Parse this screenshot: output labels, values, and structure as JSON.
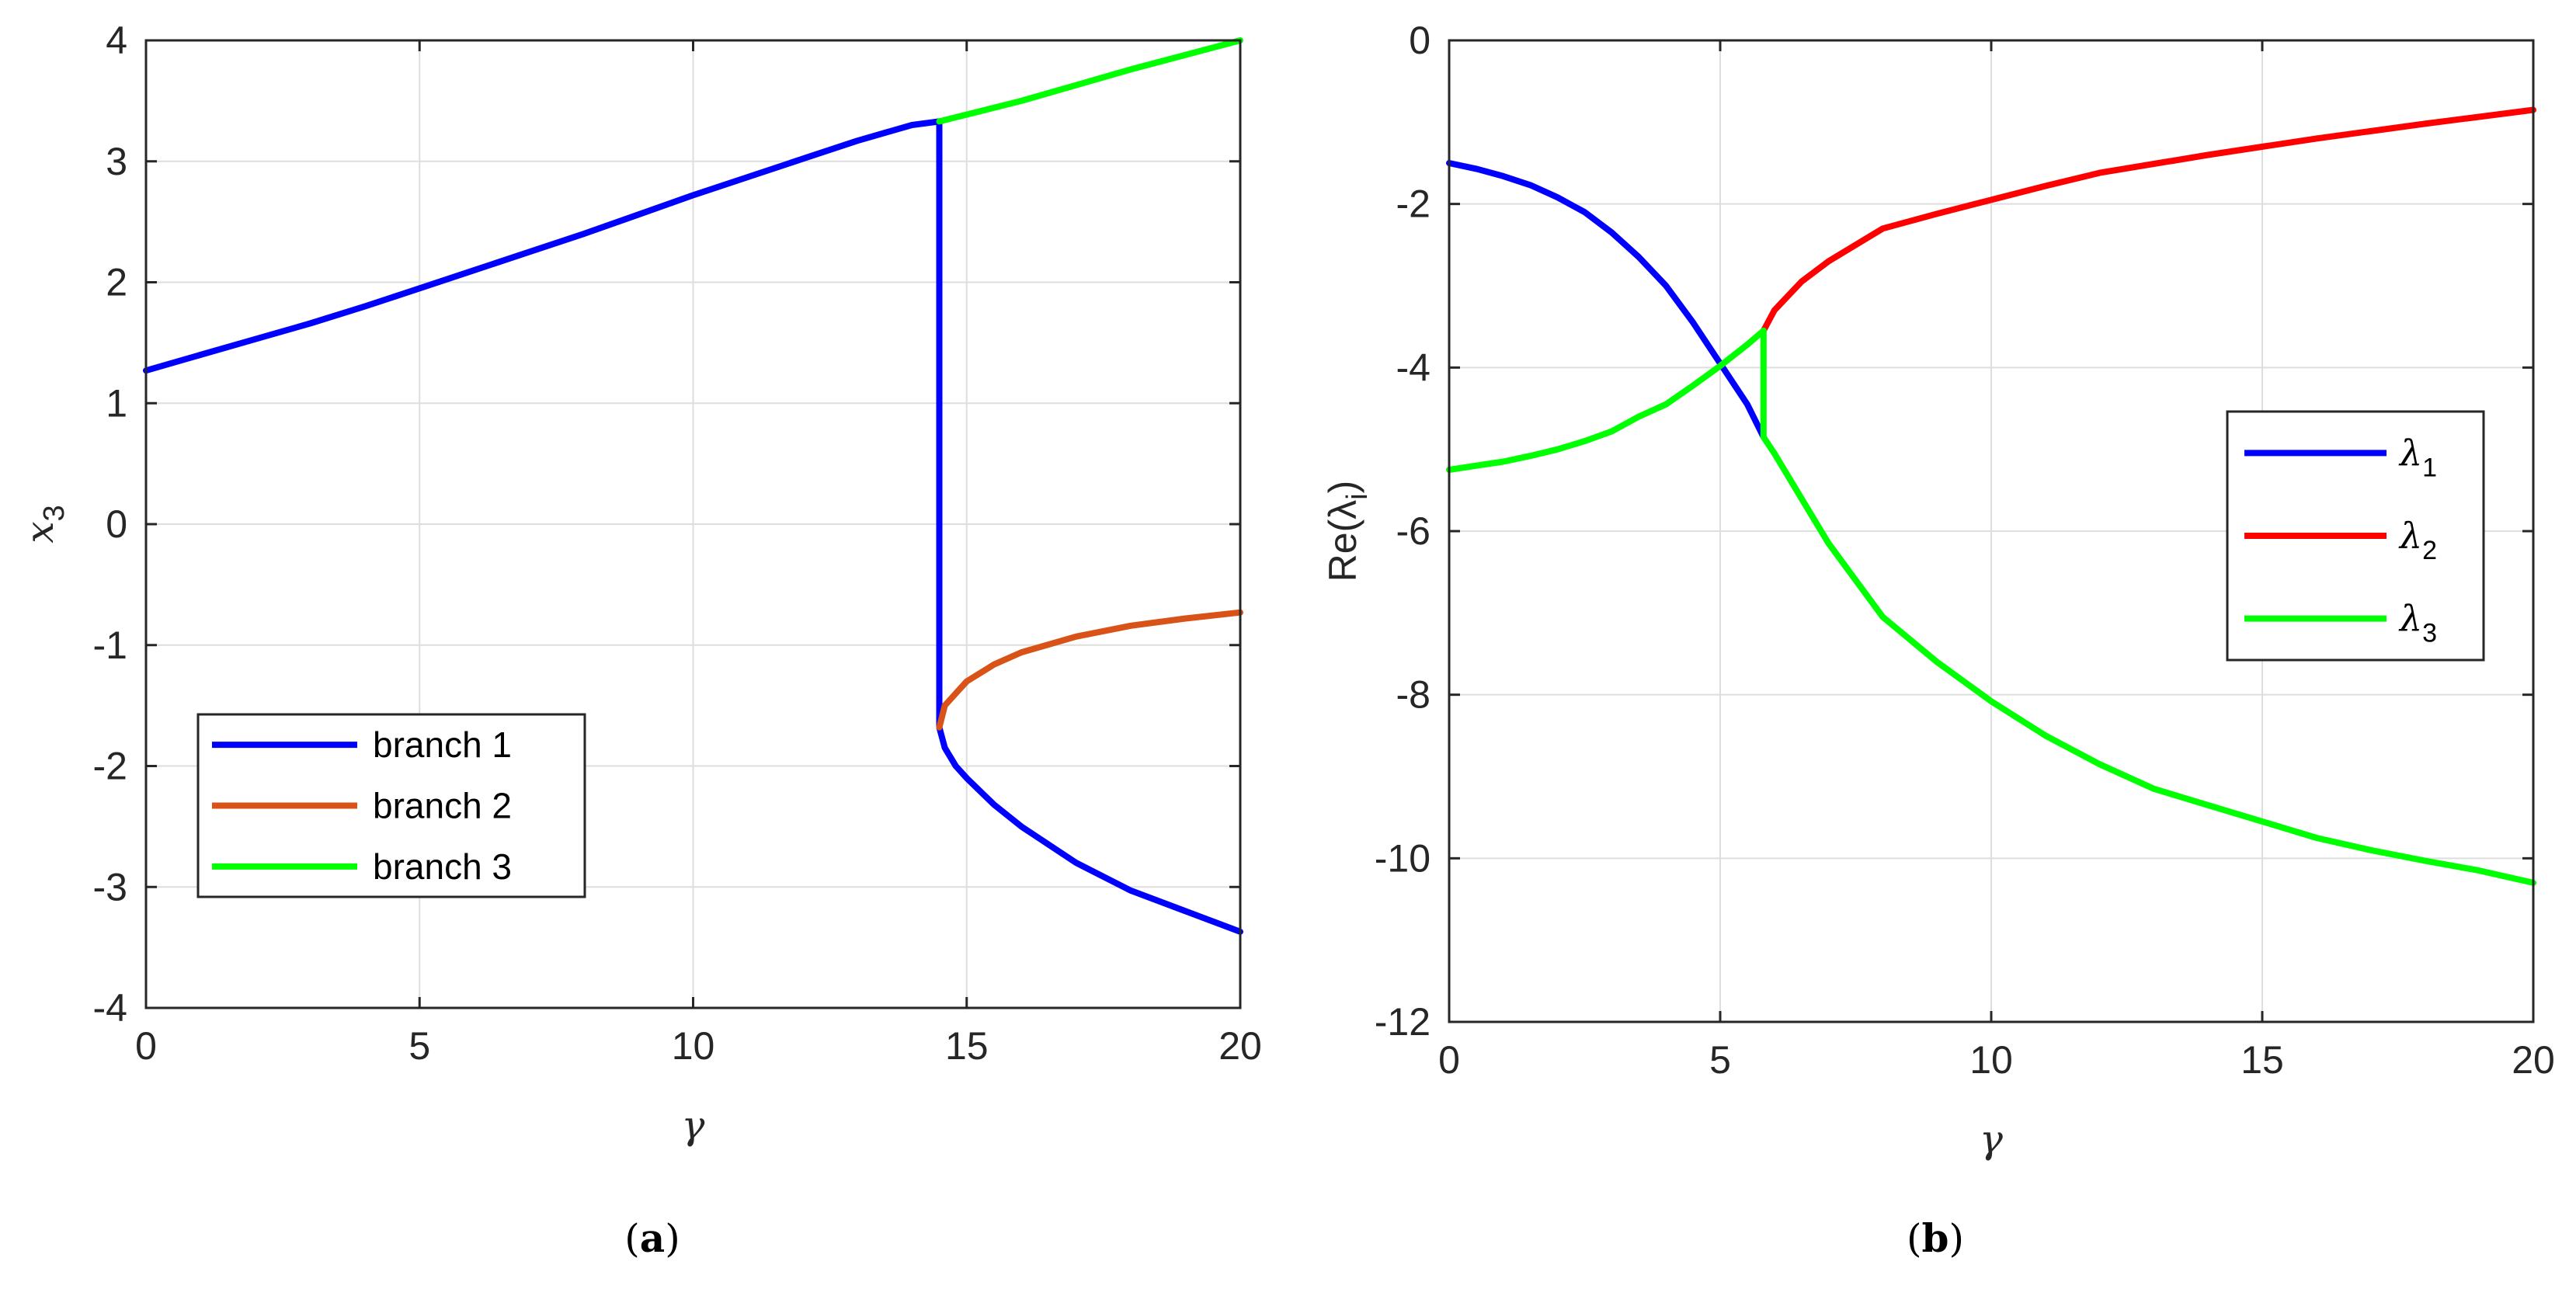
{
  "chart_data": [
    {
      "type": "line",
      "panel_label": "(a)",
      "panel_letter": "a",
      "xlabel": "γ",
      "ylabel": "x",
      "ylabel_sub": "3",
      "xlim": [
        0,
        20
      ],
      "ylim": [
        -4,
        4
      ],
      "xticks": [
        0,
        5,
        10,
        15,
        20
      ],
      "yticks": [
        -4,
        -3,
        -2,
        -1,
        0,
        1,
        2,
        3,
        4
      ],
      "grid": true,
      "legend_position": "lower-left",
      "series": [
        {
          "name": "branch 1",
          "color": "#0000ff",
          "segments": [
            {
              "x": [
                0,
                1,
                2,
                3,
                4,
                5,
                6,
                7,
                8,
                9,
                10,
                11,
                12,
                13,
                14,
                14.5
              ],
              "y": [
                1.27,
                1.4,
                1.53,
                1.66,
                1.8,
                1.95,
                2.1,
                2.25,
                2.4,
                2.56,
                2.72,
                2.87,
                3.02,
                3.17,
                3.3,
                3.33
              ]
            },
            {
              "x": [
                14.5,
                14.5
              ],
              "y": [
                3.33,
                -1.68
              ]
            },
            {
              "x": [
                14.5,
                14.6,
                14.8,
                15,
                15.5,
                16,
                17,
                18,
                19,
                20
              ],
              "y": [
                -1.68,
                -1.85,
                -2.0,
                -2.1,
                -2.32,
                -2.5,
                -2.8,
                -3.03,
                -3.2,
                -3.37
              ]
            }
          ]
        },
        {
          "name": "branch 2",
          "color": "#d95319",
          "segments": [
            {
              "x": [
                14.5,
                14.6,
                14.8,
                15,
                15.5,
                16,
                17,
                18,
                19,
                20
              ],
              "y": [
                -1.68,
                -1.5,
                -1.4,
                -1.3,
                -1.16,
                -1.06,
                -0.93,
                -0.84,
                -0.78,
                -0.73
              ]
            }
          ]
        },
        {
          "name": "branch 3",
          "color": "#00ff00",
          "segments": [
            {
              "x": [
                14.5,
                16,
                18,
                20
              ],
              "y": [
                3.33,
                3.5,
                3.76,
                4.0
              ]
            }
          ]
        }
      ]
    },
    {
      "type": "line",
      "panel_label": "(b)",
      "panel_letter": "b",
      "xlabel": "γ",
      "ylabel": "Re(λ",
      "ylabel_sub": "i",
      "ylabel_close": ")",
      "xlim": [
        0,
        20
      ],
      "ylim": [
        -12,
        0
      ],
      "xticks": [
        0,
        5,
        10,
        15,
        20
      ],
      "yticks": [
        -12,
        -10,
        -8,
        -6,
        -4,
        -2,
        0
      ],
      "grid": true,
      "legend_position": "right",
      "series": [
        {
          "name": "λ",
          "name_sub": "1",
          "color": "#0000ff",
          "segments": [
            {
              "x": [
                0,
                0.5,
                1,
                1.5,
                2,
                2.5,
                3,
                3.5,
                4,
                4.5,
                5,
                5.5,
                5.8
              ],
              "y": [
                -1.5,
                -1.57,
                -1.66,
                -1.77,
                -1.92,
                -2.1,
                -2.35,
                -2.65,
                -3.0,
                -3.45,
                -3.95,
                -4.45,
                -4.85
              ]
            }
          ]
        },
        {
          "name": "λ",
          "name_sub": "2",
          "color": "#ff0000",
          "segments": [
            {
              "x": [
                5.8,
                6,
                6.5,
                7,
                8,
                9,
                10,
                11,
                12,
                14,
                16,
                18,
                20
              ],
              "y": [
                -3.55,
                -3.3,
                -2.95,
                -2.7,
                -2.3,
                -2.12,
                -1.95,
                -1.78,
                -1.62,
                -1.4,
                -1.2,
                -1.02,
                -0.85
              ]
            }
          ]
        },
        {
          "name": "λ",
          "name_sub": "3",
          "color": "#00ff00",
          "segments": [
            {
              "x": [
                0,
                0.5,
                1,
                1.5,
                2,
                2.5,
                3,
                3.5,
                4,
                4.5,
                5,
                5.5,
                5.8
              ],
              "y": [
                -5.25,
                -5.2,
                -5.15,
                -5.08,
                -5.0,
                -4.9,
                -4.78,
                -4.6,
                -4.45,
                -4.22,
                -3.98,
                -3.72,
                -3.55
              ]
            },
            {
              "x": [
                5.8,
                5.8
              ],
              "y": [
                -3.55,
                -4.85
              ]
            },
            {
              "x": [
                5.8,
                6,
                6.5,
                7,
                8,
                9,
                10,
                11,
                12,
                13,
                14,
                15,
                16,
                17,
                18,
                19,
                20
              ],
              "y": [
                -4.85,
                -5.05,
                -5.6,
                -6.15,
                -7.05,
                -7.6,
                -8.08,
                -8.5,
                -8.85,
                -9.15,
                -9.35,
                -9.55,
                -9.75,
                -9.9,
                -10.03,
                -10.15,
                -10.3
              ]
            }
          ]
        }
      ]
    }
  ]
}
